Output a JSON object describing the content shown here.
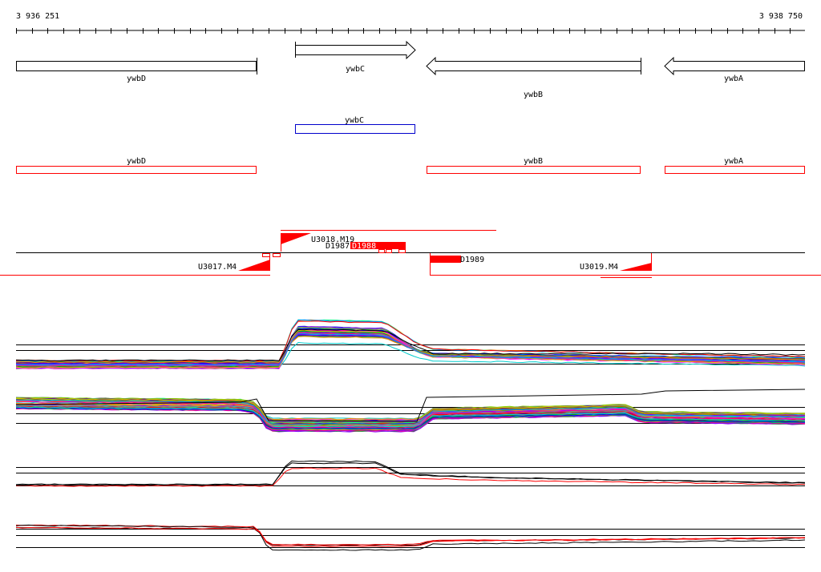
{
  "genome_region": {
    "start_label": "3 936 251",
    "end_label": "3 938 750",
    "start": 3936251,
    "end": 3938750
  },
  "tracks": {
    "annotated_genes": [
      {
        "name": "ywbD",
        "strand": "-",
        "style": "plain"
      },
      {
        "name": "ywbC",
        "strand": "+",
        "style": "arrow"
      },
      {
        "name": "ywbB",
        "strand": "-",
        "style": "arrow"
      },
      {
        "name": "ywbA",
        "strand": "-",
        "style": "arrow"
      }
    ],
    "blue_genes": [
      {
        "name": "ywbC"
      }
    ],
    "red_genes": [
      {
        "name": "ywbD"
      },
      {
        "name": "ywbB"
      },
      {
        "name": "ywbA"
      }
    ],
    "features": [
      {
        "label": "U3018.M19"
      },
      {
        "label": "U3017.M4"
      },
      {
        "label": "D1987"
      },
      {
        "label": "D1988"
      },
      {
        "label": "D1989"
      },
      {
        "label": "U3019.M4"
      }
    ]
  },
  "colors": {
    "black": "#000000",
    "red": "#ff0000",
    "blue": "#0000cc"
  }
}
